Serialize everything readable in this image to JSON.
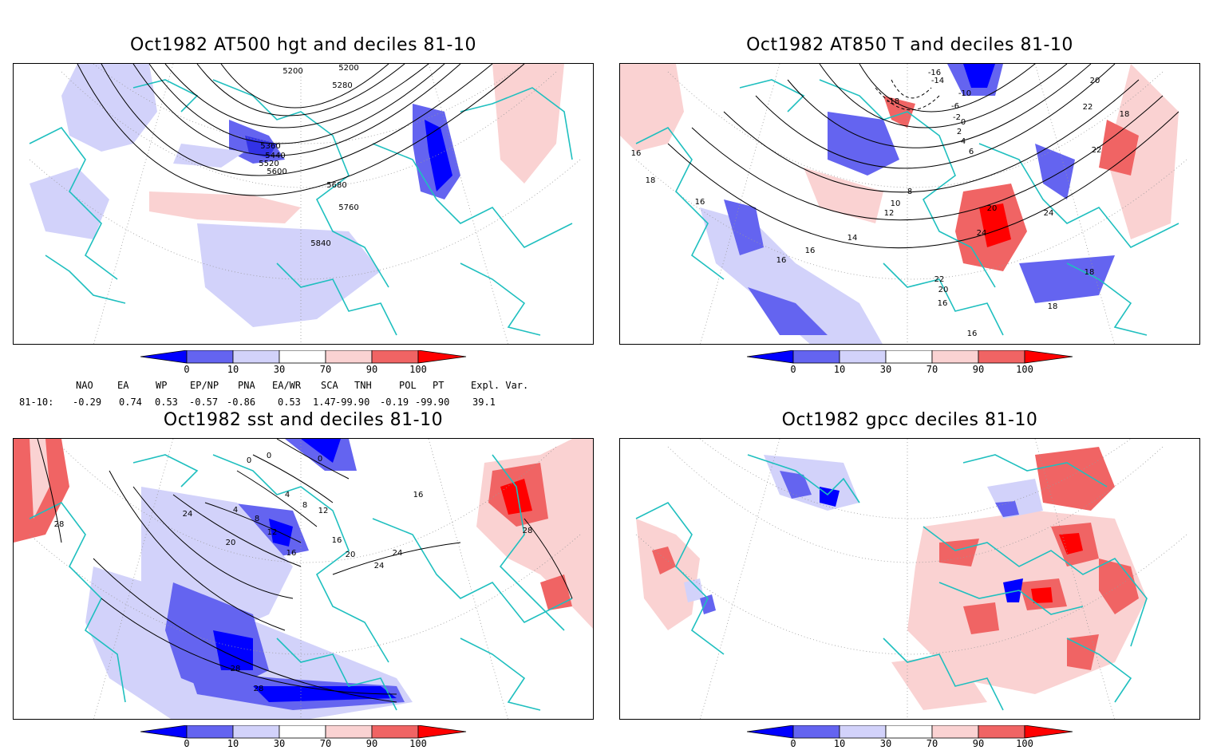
{
  "panels": {
    "p1": {
      "title": "Oct1982 AT500 hgt and deciles 81-10",
      "contour_labels": [
        "5200",
        "5200",
        "5280",
        "5360",
        "5440",
        "5520",
        "5600",
        "5680",
        "5760",
        "5840"
      ]
    },
    "p2": {
      "title": "Oct1982 AT850 T and deciles 81-10",
      "contour_labels": [
        "-16",
        "-14",
        "-18",
        "-10",
        "-6",
        "-2",
        "2",
        "0",
        "4",
        "6",
        "8",
        "10",
        "12",
        "14",
        "16",
        "16",
        "16",
        "18",
        "16",
        "18",
        "20",
        "22",
        "22",
        "24",
        "24",
        "20",
        "18",
        "16",
        "16",
        "20",
        "22",
        "18"
      ]
    },
    "p3": {
      "title": "Oct1982 sst and deciles 81-10",
      "contour_labels": [
        "0",
        "0",
        "0",
        "4",
        "4",
        "8",
        "8",
        "12",
        "16",
        "20",
        "24",
        "28",
        "28",
        "28",
        "28",
        "16",
        "20",
        "24",
        "24",
        "12",
        "16"
      ]
    },
    "p4": {
      "title": "Oct1982 gpcc deciles 81-10",
      "contour_labels": []
    }
  },
  "colorbar": {
    "labels": [
      "0",
      "10",
      "30",
      "70",
      "90",
      "100"
    ],
    "colors": [
      "#0000ff",
      "#6464f0",
      "#d2d2fa",
      "#ffffff",
      "#fad2d2",
      "#f06464",
      "#ff0000"
    ]
  },
  "indices": {
    "headers": [
      "NAO",
      "EA",
      "WP",
      "EP/NP",
      "PNA",
      "EA/WR",
      "SCA",
      "TNH",
      "POL",
      "PT",
      "Expl. Var."
    ],
    "row_label": "81-10:",
    "values": [
      "-0.29",
      "0.74",
      "0.53",
      "-0.57",
      "-0.86",
      "0.53",
      "1.47",
      "-99.90",
      "-0.19",
      "-99.90",
      "39.1"
    ]
  },
  "colors": {
    "coast": "#1fbfbf",
    "contour": "#000000",
    "grid": "#999999"
  }
}
